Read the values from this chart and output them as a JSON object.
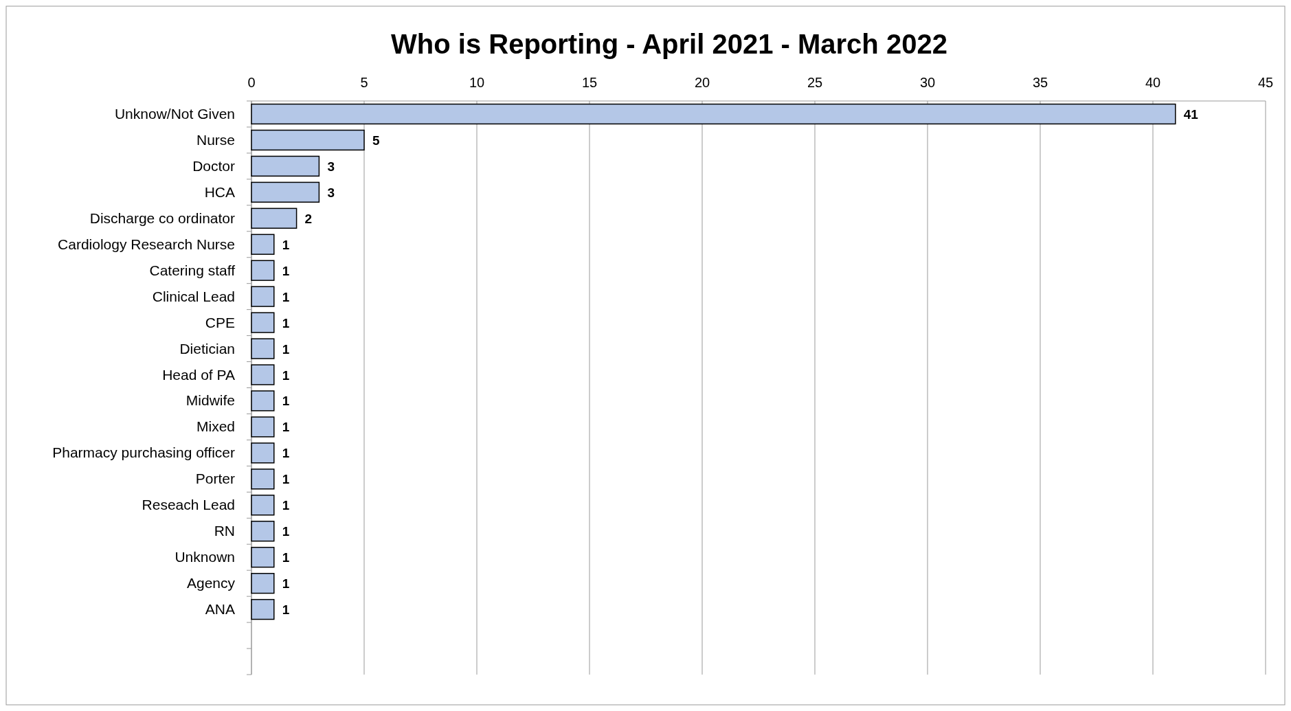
{
  "chart_data": {
    "type": "bar",
    "orientation": "horizontal",
    "title": "Who is Reporting - April 2021 - March 2022",
    "categories": [
      "Unknow/Not Given",
      "Nurse",
      "Doctor",
      "HCA",
      "Discharge co ordinator",
      "Cardiology Research Nurse",
      "Catering staff",
      "Clinical Lead",
      "CPE",
      "Dietician",
      "Head of PA",
      "Midwife",
      "Mixed",
      "Pharmacy purchasing officer",
      "Porter",
      "Reseach Lead",
      "RN",
      "Unknown",
      "Agency",
      "ANA",
      null,
      null
    ],
    "values": [
      41,
      5,
      3,
      3,
      2,
      1,
      1,
      1,
      1,
      1,
      1,
      1,
      1,
      1,
      1,
      1,
      1,
      1,
      1,
      1,
      null,
      null
    ],
    "color": "#b4c7e7",
    "xlim": [
      0,
      45
    ],
    "xticks": [
      0,
      5,
      10,
      15,
      20,
      25,
      30,
      35,
      40,
      45
    ],
    "grid": "x",
    "data_labels": true
  }
}
